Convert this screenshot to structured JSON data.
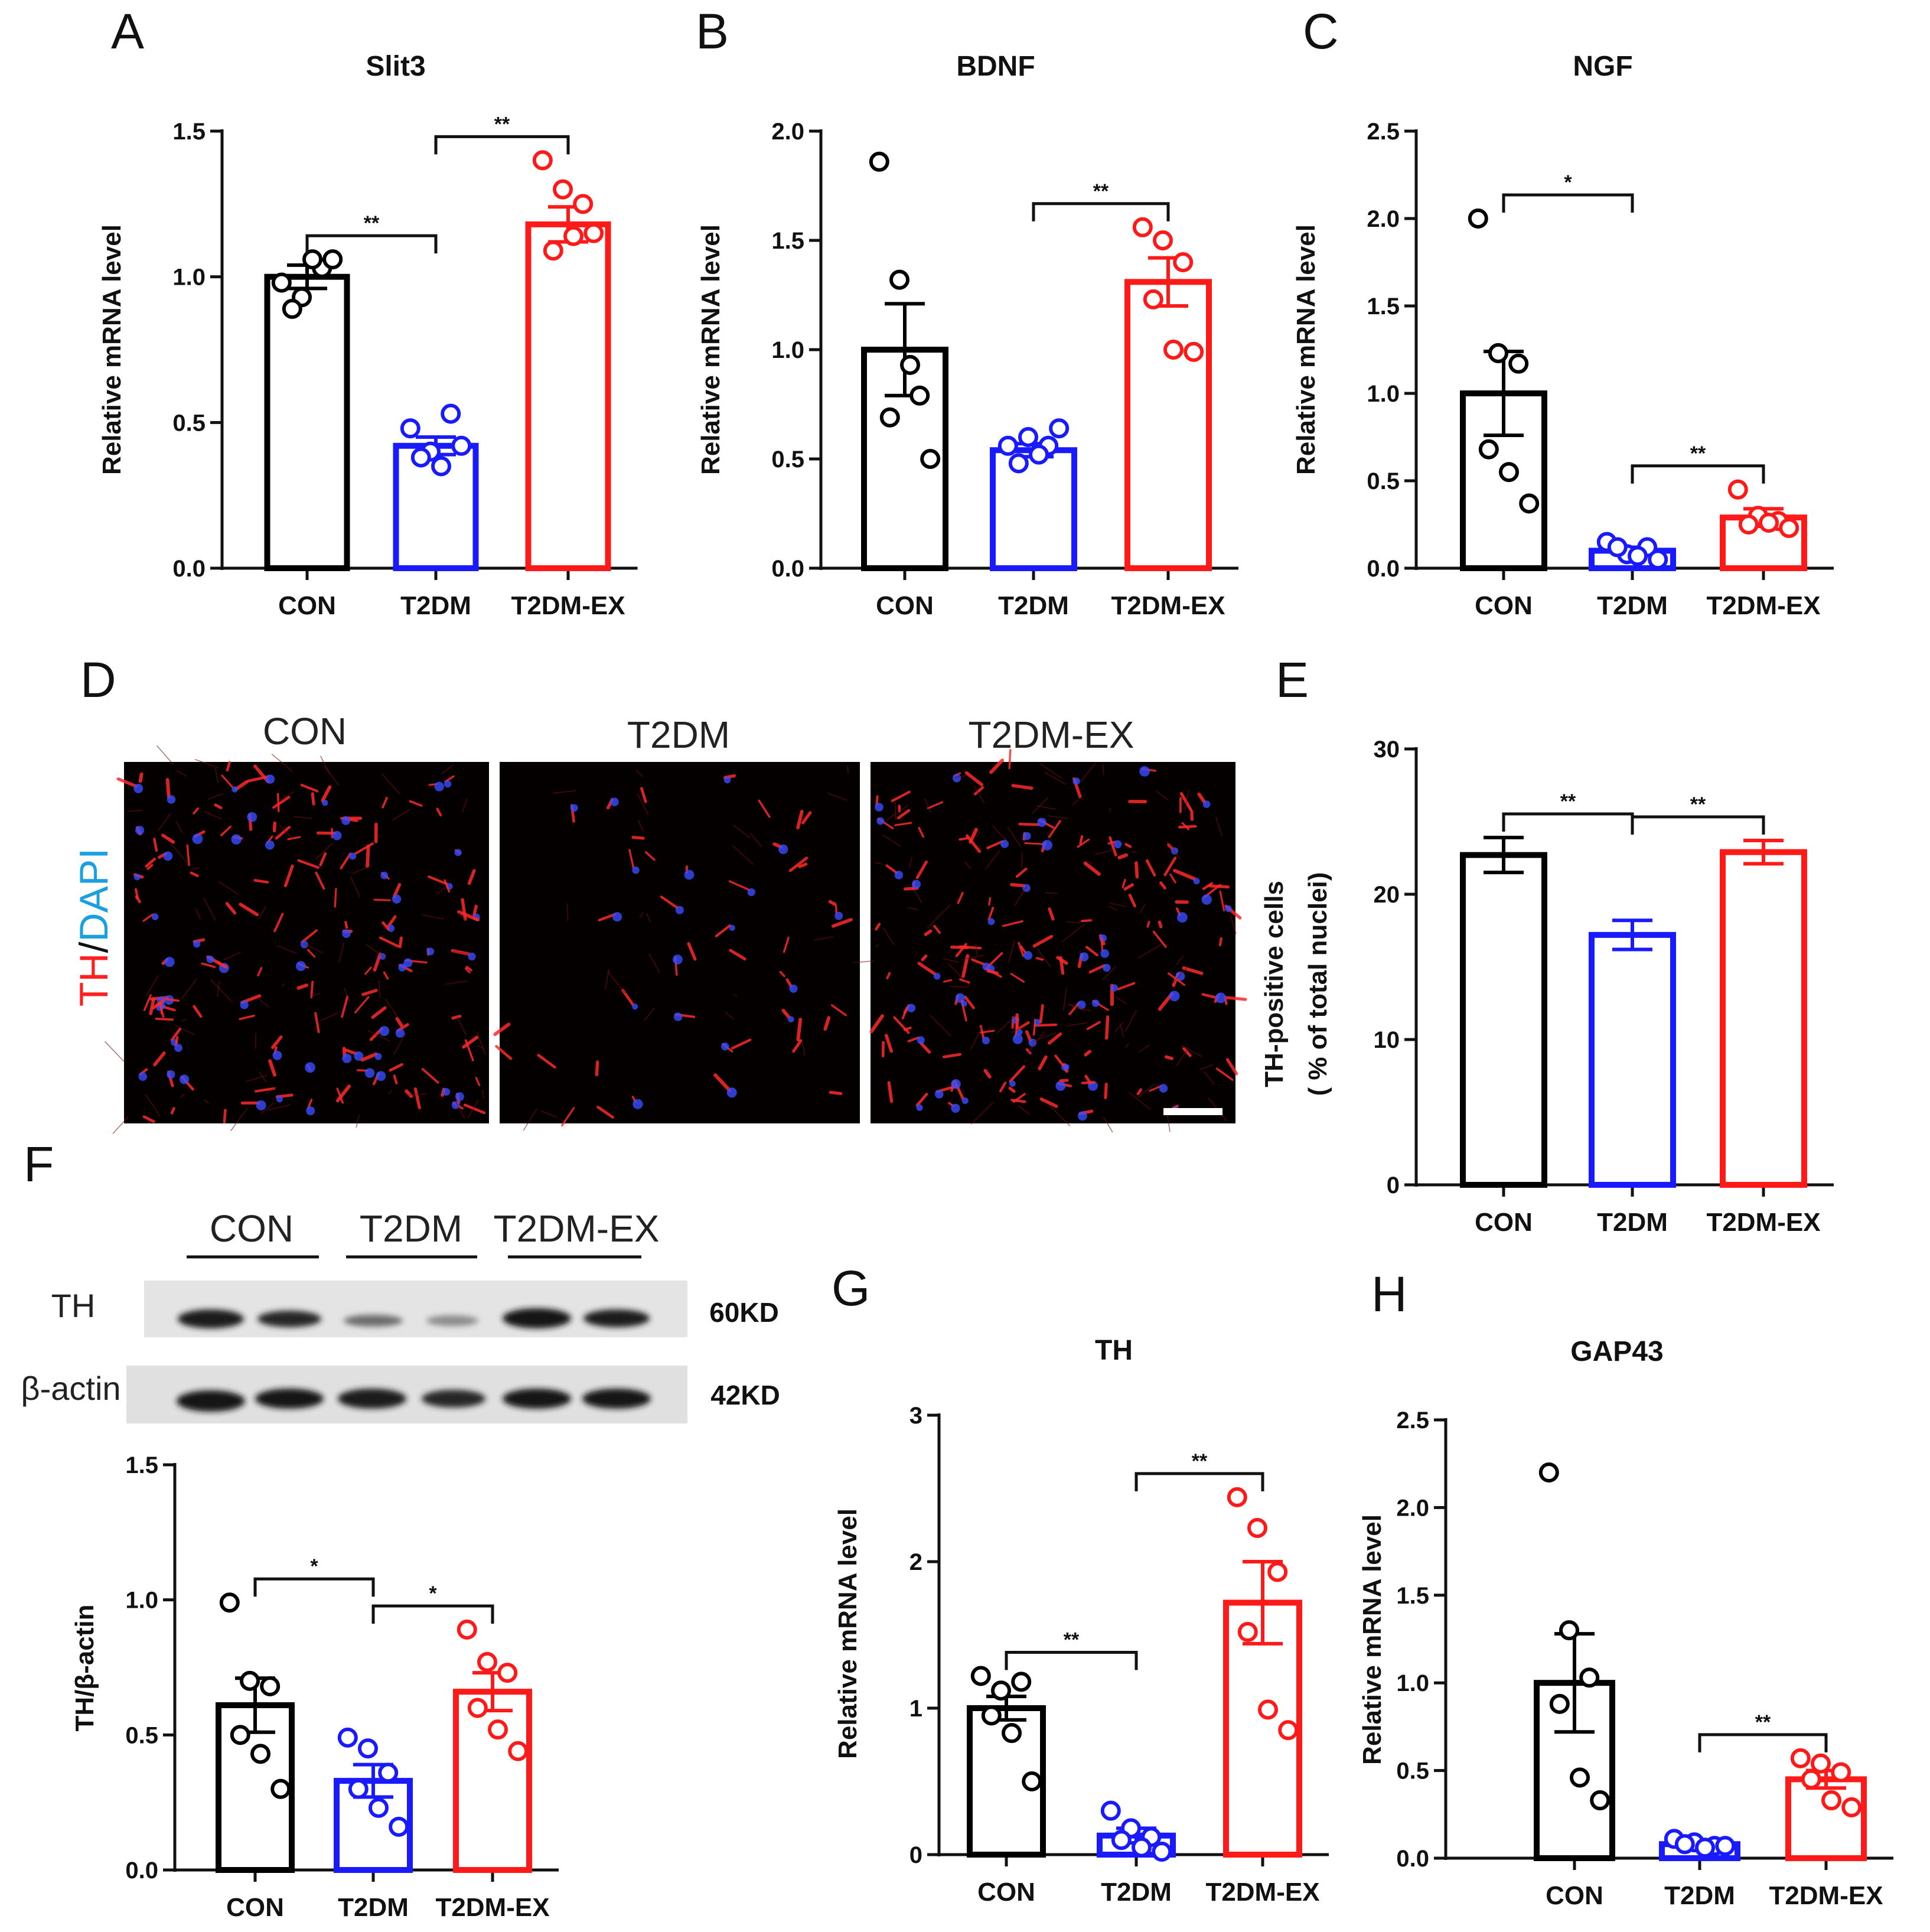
{
  "colors": {
    "CON": "#000000",
    "T2DM": "#1a1aff",
    "T2DM-EX": "#ff1a1a"
  },
  "panel_letters": [
    "A",
    "B",
    "C",
    "D",
    "E",
    "F",
    "G",
    "H"
  ],
  "panel_d": {
    "columns": [
      "CON",
      "T2DM",
      "T2DM-EX"
    ],
    "stain_label": {
      "th": "TH",
      "slash": "/",
      "dapi": "DAPI"
    }
  },
  "panel_f_blot": {
    "groups": [
      "CON",
      "T2DM",
      "T2DM-EX"
    ],
    "rows": [
      {
        "label": "TH",
        "kd": "60KD"
      },
      {
        "label": "β-actin",
        "kd": "42KD"
      }
    ]
  },
  "chart_data": [
    {
      "id": "A",
      "type": "bar",
      "title": "Slit3",
      "ylabel": "Relative mRNA level",
      "categories": [
        "CON",
        "T2DM",
        "T2DM-EX"
      ],
      "values": [
        1.0,
        0.42,
        1.18
      ],
      "sem": [
        0.04,
        0.03,
        0.06
      ],
      "ylim": [
        0,
        1.5
      ],
      "yticks": [
        0.0,
        0.5,
        1.0,
        1.5
      ],
      "points": [
        [
          0.98,
          0.93,
          1.03,
          0.89,
          1.06,
          1.06
        ],
        [
          0.48,
          0.4,
          0.53,
          0.38,
          0.35,
          0.42
        ],
        [
          1.4,
          1.3,
          1.25,
          1.09,
          1.14,
          1.15
        ]
      ],
      "sig": [
        {
          "from": 0,
          "to": 1,
          "label": "**"
        },
        {
          "from": 1,
          "to": 2,
          "label": "**"
        }
      ]
    },
    {
      "id": "B",
      "type": "bar",
      "title": "BDNF",
      "ylabel": "Relative mRNA level",
      "categories": [
        "CON",
        "T2DM",
        "T2DM-EX"
      ],
      "values": [
        1.0,
        0.54,
        1.31
      ],
      "sem": [
        0.21,
        0.03,
        0.11
      ],
      "ylim": [
        0,
        2.0
      ],
      "yticks": [
        0.0,
        0.5,
        1.0,
        1.5,
        2.0
      ],
      "points": [
        [
          1.86,
          1.32,
          0.79,
          0.69,
          0.93,
          0.5
        ],
        [
          0.56,
          0.6,
          0.56,
          0.48,
          0.52,
          0.64
        ],
        [
          1.56,
          1.5,
          1.4,
          1.23,
          1.0,
          0.99
        ]
      ],
      "sig": [
        {
          "from": 1,
          "to": 2,
          "label": "**"
        }
      ]
    },
    {
      "id": "C",
      "type": "bar",
      "title": "NGF",
      "ylabel": "Relative mRNA level",
      "categories": [
        "CON",
        "T2DM",
        "T2DM-EX"
      ],
      "values": [
        1.0,
        0.1,
        0.29
      ],
      "sem": [
        0.24,
        0.02,
        0.05
      ],
      "ylim": [
        0,
        2.5
      ],
      "yticks": [
        0.0,
        0.5,
        1.0,
        1.5,
        2.0,
        2.5
      ],
      "points": [
        [
          2.0,
          1.23,
          1.17,
          0.68,
          0.55,
          0.37
        ],
        [
          0.15,
          0.08,
          0.12,
          0.12,
          0.07,
          0.05
        ],
        [
          0.45,
          0.3,
          0.27,
          0.25,
          0.26,
          0.23
        ]
      ],
      "sig": [
        {
          "from": 0,
          "to": 1,
          "label": "*"
        },
        {
          "from": 1,
          "to": 2,
          "label": "**"
        }
      ]
    },
    {
      "id": "E",
      "type": "bar",
      "title": "",
      "ylabel": "TH-positive cells",
      "ylabel2": "( % of total nuclei)",
      "categories": [
        "CON",
        "T2DM",
        "T2DM-EX"
      ],
      "values": [
        22.7,
        17.2,
        22.9
      ],
      "sem": [
        1.2,
        1.0,
        0.8
      ],
      "ylim": [
        0,
        30
      ],
      "yticks": [
        0,
        10,
        20,
        30
      ],
      "points": [],
      "sig": [
        {
          "from": 0,
          "to": 1,
          "label": "**"
        },
        {
          "from": 1,
          "to": 2,
          "label": "**"
        }
      ]
    },
    {
      "id": "F",
      "type": "bar",
      "title": "",
      "ylabel": "TH/β-actin",
      "categories": [
        "CON",
        "T2DM",
        "T2DM-EX"
      ],
      "values": [
        0.61,
        0.33,
        0.66
      ],
      "sem": [
        0.1,
        0.06,
        0.07
      ],
      "ylim": [
        0,
        1.5
      ],
      "yticks": [
        0.0,
        0.5,
        1.0,
        1.5
      ],
      "points": [
        [
          0.99,
          0.7,
          0.68,
          0.5,
          0.43,
          0.3
        ],
        [
          0.49,
          0.45,
          0.36,
          0.3,
          0.23,
          0.16
        ],
        [
          0.89,
          0.77,
          0.73,
          0.6,
          0.52,
          0.44
        ]
      ],
      "sig": [
        {
          "from": 0,
          "to": 1,
          "label": "*"
        },
        {
          "from": 1,
          "to": 2,
          "label": "*"
        }
      ]
    },
    {
      "id": "G",
      "type": "bar",
      "title": "TH",
      "ylabel": "Relative mRNA level",
      "categories": [
        "CON",
        "T2DM",
        "T2DM-EX"
      ],
      "values": [
        1.0,
        0.13,
        1.72
      ],
      "sem": [
        0.08,
        0.05,
        0.28
      ],
      "ylim": [
        0,
        3
      ],
      "yticks": [
        0,
        1,
        2,
        3
      ],
      "points": [
        [
          1.22,
          1.12,
          1.18,
          0.95,
          0.83,
          0.5
        ],
        [
          0.3,
          0.18,
          0.12,
          0.1,
          0.05,
          0.02
        ],
        [
          2.44,
          2.23,
          1.93,
          1.52,
          0.99,
          0.85
        ]
      ],
      "sig": [
        {
          "from": 0,
          "to": 1,
          "label": "**"
        },
        {
          "from": 1,
          "to": 2,
          "label": "**"
        }
      ]
    },
    {
      "id": "H",
      "type": "bar",
      "title": "GAP43",
      "ylabel": "Relative mRNA level",
      "categories": [
        "CON",
        "T2DM",
        "T2DM-EX"
      ],
      "values": [
        1.0,
        0.08,
        0.45
      ],
      "sem": [
        0.28,
        0.01,
        0.05
      ],
      "ylim": [
        0,
        2.5
      ],
      "yticks": [
        0.0,
        0.5,
        1.0,
        1.5,
        2.0,
        2.5
      ],
      "points": [
        [
          2.2,
          1.3,
          1.03,
          0.88,
          0.46,
          0.33
        ],
        [
          0.11,
          0.09,
          0.07,
          0.08,
          0.06,
          0.07
        ],
        [
          0.57,
          0.54,
          0.49,
          0.45,
          0.33,
          0.29
        ]
      ],
      "sig": [
        {
          "from": 1,
          "to": 2,
          "label": "**"
        }
      ]
    }
  ]
}
